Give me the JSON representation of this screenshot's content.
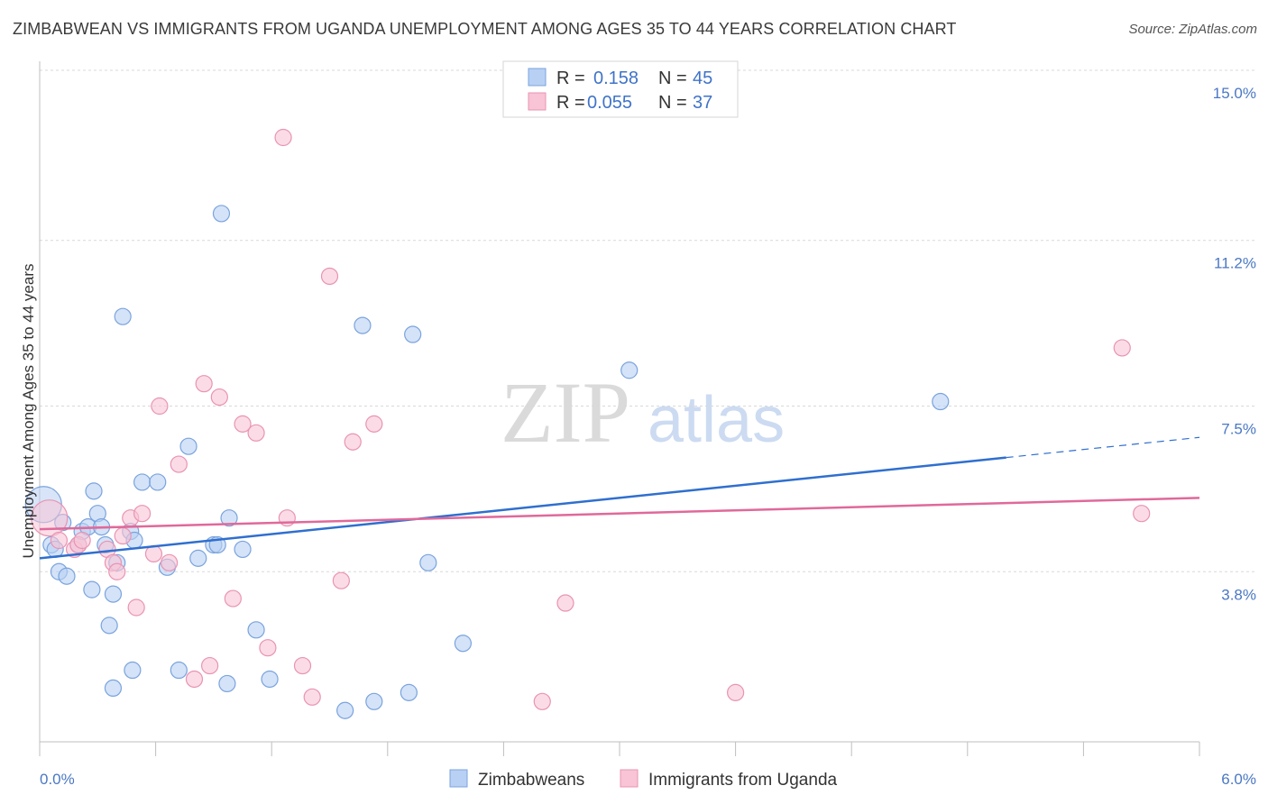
{
  "chart_data": {
    "type": "scatter",
    "title": "ZIMBABWEAN VS IMMIGRANTS FROM UGANDA UNEMPLOYMENT AMONG AGES 35 TO 44 YEARS CORRELATION CHART",
    "source": "Source: ZipAtlas.com",
    "ylabel": "Unemployment Among Ages 35 to 44 years",
    "xlim": [
      0,
      6.0
    ],
    "ylim": [
      0,
      15.0
    ],
    "x_tick_labels": [
      "0.0%",
      "6.0%"
    ],
    "y_ticks": [
      {
        "value": 3.8,
        "label": "3.8%"
      },
      {
        "value": 7.5,
        "label": "7.5%"
      },
      {
        "value": 11.2,
        "label": "11.2%"
      },
      {
        "value": 15.0,
        "label": "15.0%"
      }
    ],
    "watermark": {
      "zip": "ZIP",
      "atlas": "atlas"
    },
    "legend": [
      {
        "r_label": "R =",
        "r_value": "0.158",
        "n_label": "N =",
        "n_value": "45"
      },
      {
        "r_label": "R =",
        "r_value": "0.055",
        "n_label": "N =",
        "n_value": "37"
      }
    ],
    "colors": {
      "blue_fill": "#b8d0f3",
      "blue_stroke": "#7aa3dd",
      "blue_line": "#2f6fcf",
      "pink_fill": "#f8c4d6",
      "pink_stroke": "#e993b3",
      "pink_line": "#e0699a",
      "tick": "#4a78c4",
      "grid": "#d8d8d8"
    },
    "series": [
      {
        "name": "Zimbabweans",
        "trend": {
          "x0": 0.0,
          "y0": 4.1,
          "x1": 5.0,
          "y1": 6.35,
          "dash_to_x": 6.0,
          "dash_to_y": 6.8
        },
        "points": [
          [
            0.02,
            5.3
          ],
          [
            0.06,
            4.4
          ],
          [
            0.08,
            4.3
          ],
          [
            0.1,
            3.8
          ],
          [
            0.12,
            4.9
          ],
          [
            0.14,
            3.7
          ],
          [
            0.2,
            4.4
          ],
          [
            0.22,
            4.7
          ],
          [
            0.25,
            4.8
          ],
          [
            0.27,
            3.4
          ],
          [
            0.28,
            5.6
          ],
          [
            0.3,
            5.1
          ],
          [
            0.32,
            4.8
          ],
          [
            0.34,
            4.4
          ],
          [
            0.36,
            2.6
          ],
          [
            0.38,
            1.2
          ],
          [
            0.38,
            3.3
          ],
          [
            0.4,
            4.0
          ],
          [
            0.43,
            9.5
          ],
          [
            0.47,
            4.7
          ],
          [
            0.48,
            1.6
          ],
          [
            0.49,
            4.5
          ],
          [
            0.53,
            5.8
          ],
          [
            0.61,
            5.8
          ],
          [
            0.66,
            3.9
          ],
          [
            0.72,
            1.6
          ],
          [
            0.77,
            6.6
          ],
          [
            0.82,
            4.1
          ],
          [
            0.9,
            4.4
          ],
          [
            0.92,
            4.4
          ],
          [
            0.94,
            11.8
          ],
          [
            0.97,
            1.3
          ],
          [
            0.98,
            5.0
          ],
          [
            1.05,
            4.3
          ],
          [
            1.12,
            2.5
          ],
          [
            1.19,
            1.4
          ],
          [
            1.58,
            0.7
          ],
          [
            1.67,
            9.3
          ],
          [
            1.73,
            0.9
          ],
          [
            1.91,
            1.1
          ],
          [
            1.93,
            9.1
          ],
          [
            2.01,
            4.0
          ],
          [
            2.19,
            2.2
          ],
          [
            3.05,
            8.3
          ],
          [
            4.66,
            7.6
          ]
        ]
      },
      {
        "name": "Immigrants from Uganda",
        "trend": {
          "x0": 0.0,
          "y0": 4.75,
          "x1": 6.0,
          "y1": 5.45
        },
        "points": [
          [
            0.05,
            5.0
          ],
          [
            0.1,
            4.5
          ],
          [
            0.18,
            4.3
          ],
          [
            0.2,
            4.4
          ],
          [
            0.22,
            4.5
          ],
          [
            0.35,
            4.3
          ],
          [
            0.38,
            4.0
          ],
          [
            0.4,
            3.8
          ],
          [
            0.43,
            4.6
          ],
          [
            0.47,
            5.0
          ],
          [
            0.5,
            3.0
          ],
          [
            0.53,
            5.1
          ],
          [
            0.59,
            4.2
          ],
          [
            0.62,
            7.5
          ],
          [
            0.67,
            4.0
          ],
          [
            0.72,
            6.2
          ],
          [
            0.8,
            1.4
          ],
          [
            0.85,
            8.0
          ],
          [
            0.88,
            1.7
          ],
          [
            0.93,
            7.7
          ],
          [
            1.0,
            3.2
          ],
          [
            1.05,
            7.1
          ],
          [
            1.12,
            6.9
          ],
          [
            1.18,
            2.1
          ],
          [
            1.26,
            13.5
          ],
          [
            1.28,
            5.0
          ],
          [
            1.36,
            1.7
          ],
          [
            1.41,
            1.0
          ],
          [
            1.5,
            10.4
          ],
          [
            1.56,
            3.6
          ],
          [
            1.62,
            6.7
          ],
          [
            1.73,
            7.1
          ],
          [
            2.6,
            0.9
          ],
          [
            2.72,
            3.1
          ],
          [
            3.6,
            1.1
          ],
          [
            5.6,
            8.8
          ],
          [
            5.7,
            5.1
          ]
        ]
      }
    ]
  }
}
